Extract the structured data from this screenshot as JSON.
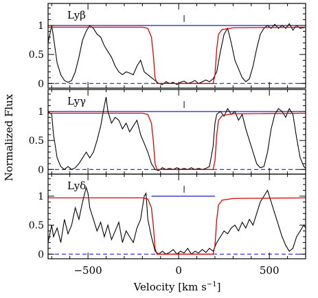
{
  "chart_data": {
    "type": "line",
    "xlabel": "Velocity [km s",
    "xlabel_sup": "−1",
    "xlabel_close": "]",
    "ylabel": "Normalized Flux",
    "xlim": [
      -720,
      700
    ],
    "x_ticks": [
      -500,
      0,
      500
    ],
    "x_tick_labels": [
      "−500",
      "0",
      "500"
    ],
    "y_ticks": [
      0,
      0.5,
      1
    ],
    "y_tick_labels": [
      "0",
      "0.5",
      "1"
    ],
    "colors": {
      "data": "#000000",
      "model": "#e00000",
      "continuum": "#0000cc",
      "zero": "#0000cc"
    },
    "panels": [
      {
        "label": "Lyβ",
        "ylim": [
          -0.08,
          1.38
        ],
        "marker_x": 30,
        "spectrum": [
          [
            -720,
            0.7
          ],
          [
            -700,
            1.0
          ],
          [
            -690,
            0.8
          ],
          [
            -670,
            0.35
          ],
          [
            -650,
            0.15
          ],
          [
            -630,
            0.05
          ],
          [
            -610,
            0.02
          ],
          [
            -590,
            0.05
          ],
          [
            -570,
            0.2
          ],
          [
            -550,
            0.45
          ],
          [
            -530,
            0.75
          ],
          [
            -510,
            0.9
          ],
          [
            -490,
            1.0
          ],
          [
            -470,
            0.95
          ],
          [
            -450,
            0.85
          ],
          [
            -430,
            0.8
          ],
          [
            -410,
            0.65
          ],
          [
            -390,
            0.55
          ],
          [
            -370,
            0.45
          ],
          [
            -350,
            0.3
          ],
          [
            -330,
            0.2
          ],
          [
            -310,
            0.15
          ],
          [
            -290,
            0.2
          ],
          [
            -270,
            0.18
          ],
          [
            -250,
            0.15
          ],
          [
            -230,
            0.3
          ],
          [
            -210,
            0.4
          ],
          [
            -190,
            0.2
          ],
          [
            -170,
            0.15
          ],
          [
            -150,
            0.1
          ],
          [
            -130,
            0.05
          ],
          [
            -110,
            0.0
          ],
          [
            -90,
            -0.02
          ],
          [
            -70,
            0.03
          ],
          [
            -50,
            0.0
          ],
          [
            -30,
            0.02
          ],
          [
            -10,
            -0.02
          ],
          [
            10,
            0.02
          ],
          [
            30,
            0.04
          ],
          [
            50,
            0.0
          ],
          [
            70,
            0.02
          ],
          [
            90,
            0.05
          ],
          [
            110,
            0.0
          ],
          [
            130,
            0.03
          ],
          [
            150,
            0.06
          ],
          [
            170,
            0.03
          ],
          [
            190,
            0.08
          ],
          [
            210,
            0.2
          ],
          [
            230,
            0.55
          ],
          [
            250,
            0.85
          ],
          [
            270,
            0.95
          ],
          [
            290,
            0.7
          ],
          [
            310,
            0.4
          ],
          [
            330,
            0.25
          ],
          [
            350,
            0.1
          ],
          [
            370,
            0.03
          ],
          [
            390,
            0.08
          ],
          [
            410,
            0.3
          ],
          [
            430,
            0.6
          ],
          [
            450,
            0.85
          ],
          [
            470,
            0.95
          ],
          [
            490,
            1.0
          ],
          [
            510,
            0.95
          ],
          [
            530,
            1.02
          ],
          [
            550,
            0.95
          ],
          [
            570,
            1.0
          ],
          [
            590,
            0.95
          ],
          [
            610,
            1.03
          ],
          [
            630,
            0.92
          ],
          [
            650,
            1.0
          ],
          [
            670,
            0.95
          ],
          [
            700,
            0.97
          ]
        ],
        "model": [
          [
            -720,
            0.97
          ],
          [
            -200,
            0.97
          ],
          [
            -170,
            0.95
          ],
          [
            -150,
            0.8
          ],
          [
            -140,
            0.5
          ],
          [
            -130,
            0.1
          ],
          [
            -120,
            0.0
          ],
          [
            190,
            0.0
          ],
          [
            200,
            0.15
          ],
          [
            210,
            0.6
          ],
          [
            220,
            0.85
          ],
          [
            240,
            0.93
          ],
          [
            300,
            0.96
          ],
          [
            700,
            0.97
          ]
        ]
      },
      {
        "label": "Lyγ",
        "ylim": [
          -0.08,
          1.38
        ],
        "marker_x": 30,
        "spectrum": [
          [
            -720,
            1.0
          ],
          [
            -700,
            0.95
          ],
          [
            -690,
            0.6
          ],
          [
            -670,
            0.2
          ],
          [
            -650,
            0.05
          ],
          [
            -630,
            0.0
          ],
          [
            -610,
            0.05
          ],
          [
            -590,
            0.0
          ],
          [
            -570,
            0.03
          ],
          [
            -550,
            0.1
          ],
          [
            -530,
            0.2
          ],
          [
            -510,
            0.3
          ],
          [
            -490,
            0.2
          ],
          [
            -470,
            0.3
          ],
          [
            -450,
            0.5
          ],
          [
            -430,
            0.75
          ],
          [
            -410,
            1.1
          ],
          [
            -400,
            1.25
          ],
          [
            -390,
            1.0
          ],
          [
            -370,
            0.8
          ],
          [
            -350,
            0.9
          ],
          [
            -330,
            0.85
          ],
          [
            -310,
            0.7
          ],
          [
            -290,
            0.8
          ],
          [
            -270,
            0.65
          ],
          [
            -250,
            0.75
          ],
          [
            -230,
            0.85
          ],
          [
            -210,
            0.6
          ],
          [
            -190,
            0.45
          ],
          [
            -170,
            0.3
          ],
          [
            -150,
            0.1
          ],
          [
            -130,
            0.0
          ],
          [
            -110,
            -0.02
          ],
          [
            -90,
            0.03
          ],
          [
            -70,
            0.0
          ],
          [
            -50,
            0.02
          ],
          [
            -30,
            0.0
          ],
          [
            -10,
            0.03
          ],
          [
            10,
            0.0
          ],
          [
            30,
            0.02
          ],
          [
            50,
            0.0
          ],
          [
            70,
            0.03
          ],
          [
            90,
            0.0
          ],
          [
            110,
            0.02
          ],
          [
            130,
            0.0
          ],
          [
            150,
            0.02
          ],
          [
            170,
            0.05
          ],
          [
            190,
            0.4
          ],
          [
            200,
            0.8
          ],
          [
            210,
            0.95
          ],
          [
            230,
            1.0
          ],
          [
            250,
            0.92
          ],
          [
            270,
            1.05
          ],
          [
            290,
            0.95
          ],
          [
            310,
            1.0
          ],
          [
            330,
            0.85
          ],
          [
            350,
            0.95
          ],
          [
            370,
            0.7
          ],
          [
            390,
            0.5
          ],
          [
            410,
            0.3
          ],
          [
            430,
            0.1
          ],
          [
            450,
            0.03
          ],
          [
            470,
            0.05
          ],
          [
            490,
            0.3
          ],
          [
            510,
            0.7
          ],
          [
            530,
            0.95
          ],
          [
            550,
            1.05
          ],
          [
            570,
            1.0
          ],
          [
            590,
            0.9
          ],
          [
            610,
            1.05
          ],
          [
            630,
            0.95
          ],
          [
            650,
            0.55
          ],
          [
            670,
            0.2
          ],
          [
            690,
            0.05
          ],
          [
            700,
            0.02
          ]
        ],
        "model": [
          [
            -720,
            0.97
          ],
          [
            -200,
            0.97
          ],
          [
            -170,
            0.95
          ],
          [
            -150,
            0.8
          ],
          [
            -140,
            0.5
          ],
          [
            -130,
            0.1
          ],
          [
            -120,
            0.0
          ],
          [
            190,
            0.0
          ],
          [
            200,
            0.15
          ],
          [
            210,
            0.6
          ],
          [
            220,
            0.85
          ],
          [
            240,
            0.93
          ],
          [
            300,
            0.96
          ],
          [
            700,
            0.97
          ]
        ]
      },
      {
        "label": "Lyδ",
        "ylim": [
          -0.08,
          1.38
        ],
        "marker_x": 30,
        "spectrum": [
          [
            -720,
            0.2
          ],
          [
            -700,
            0.5
          ],
          [
            -690,
            0.3
          ],
          [
            -670,
            0.45
          ],
          [
            -650,
            0.2
          ],
          [
            -630,
            0.6
          ],
          [
            -610,
            0.35
          ],
          [
            -590,
            0.5
          ],
          [
            -570,
            0.8
          ],
          [
            -550,
            0.6
          ],
          [
            -530,
            0.9
          ],
          [
            -510,
            1.15
          ],
          [
            -500,
            1.05
          ],
          [
            -490,
            0.8
          ],
          [
            -470,
            0.6
          ],
          [
            -450,
            0.4
          ],
          [
            -430,
            0.55
          ],
          [
            -410,
            0.3
          ],
          [
            -390,
            0.5
          ],
          [
            -370,
            0.25
          ],
          [
            -350,
            0.4
          ],
          [
            -330,
            0.55
          ],
          [
            -310,
            0.2
          ],
          [
            -290,
            0.4
          ],
          [
            -270,
            0.3
          ],
          [
            -250,
            0.2
          ],
          [
            -230,
            0.45
          ],
          [
            -210,
            0.6
          ],
          [
            -190,
            1.0
          ],
          [
            -180,
            1.05
          ],
          [
            -170,
            0.6
          ],
          [
            -150,
            0.3
          ],
          [
            -130,
            0.05
          ],
          [
            -110,
            0.0
          ],
          [
            -90,
            0.05
          ],
          [
            -70,
            0.0
          ],
          [
            -50,
            0.03
          ],
          [
            -30,
            0.08
          ],
          [
            -10,
            0.0
          ],
          [
            10,
            0.05
          ],
          [
            30,
            0.02
          ],
          [
            50,
            0.1
          ],
          [
            70,
            0.0
          ],
          [
            90,
            0.05
          ],
          [
            110,
            0.02
          ],
          [
            130,
            0.08
          ],
          [
            150,
            0.03
          ],
          [
            170,
            0.1
          ],
          [
            190,
            0.05
          ],
          [
            210,
            0.2
          ],
          [
            230,
            0.3
          ],
          [
            250,
            0.4
          ],
          [
            270,
            0.35
          ],
          [
            290,
            0.45
          ],
          [
            310,
            0.5
          ],
          [
            330,
            0.4
          ],
          [
            350,
            0.55
          ],
          [
            370,
            0.45
          ],
          [
            390,
            0.6
          ],
          [
            410,
            0.5
          ],
          [
            430,
            0.7
          ],
          [
            450,
            0.9
          ],
          [
            470,
            1.0
          ],
          [
            490,
            1.1
          ],
          [
            510,
            0.9
          ],
          [
            530,
            0.7
          ],
          [
            550,
            0.5
          ],
          [
            570,
            0.3
          ],
          [
            590,
            0.15
          ],
          [
            610,
            0.05
          ],
          [
            630,
            0.1
          ],
          [
            650,
            0.3
          ],
          [
            670,
            0.4
          ],
          [
            690,
            0.5
          ],
          [
            700,
            0.45
          ]
        ],
        "model": [
          [
            -720,
            0.97
          ],
          [
            -200,
            0.97
          ],
          [
            -170,
            0.95
          ],
          [
            -150,
            0.8
          ],
          [
            -140,
            0.5
          ],
          [
            -130,
            0.1
          ],
          [
            -120,
            0.0
          ],
          [
            190,
            0.0
          ],
          [
            200,
            0.15
          ],
          [
            210,
            0.6
          ],
          [
            220,
            0.85
          ],
          [
            240,
            0.93
          ],
          [
            300,
            0.96
          ],
          [
            700,
            0.97
          ]
        ],
        "continuum_range": [
          -150,
          200
        ]
      }
    ]
  }
}
